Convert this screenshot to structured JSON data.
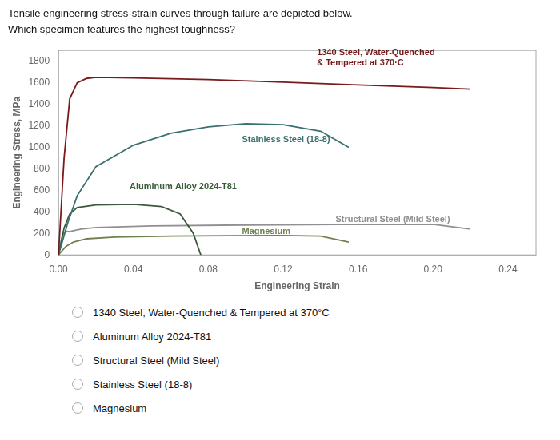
{
  "chart_data": {
    "type": "line",
    "title": "Tensile engineering stress-strain curves through failure are depicted below.",
    "subtitle": "Which specimen features the highest toughness?",
    "x_label": "Engineering Strain",
    "y_label": "Engineering Stress, MPa",
    "xlim": [
      0,
      0.255
    ],
    "ylim": [
      0,
      1900
    ],
    "xticks": [
      {
        "value": 0,
        "label": "0.00"
      },
      {
        "value": 0.04,
        "label": "0.04"
      },
      {
        "value": 0.08,
        "label": "0.08"
      },
      {
        "value": 0.12,
        "label": "0.12"
      },
      {
        "value": 0.16,
        "label": "0.16"
      },
      {
        "value": 0.2,
        "label": "0.20"
      },
      {
        "value": 0.24,
        "label": "0.24"
      }
    ],
    "yticks": [
      0,
      200,
      400,
      600,
      800,
      1000,
      1200,
      1400,
      1600,
      1800
    ],
    "grid": false,
    "series": [
      {
        "color": "#7a1a1a",
        "x": [
          0,
          0.003,
          0.006,
          0.01,
          0.015,
          0.02,
          0.04,
          0.08,
          0.12,
          0.16,
          0.2,
          0.22
        ],
        "values": [
          0,
          900,
          1450,
          1600,
          1640,
          1650,
          1645,
          1630,
          1605,
          1580,
          1555,
          1540
        ]
      },
      {
        "color": "#3a7070",
        "x": [
          0,
          0.005,
          0.01,
          0.02,
          0.04,
          0.06,
          0.08,
          0.1,
          0.12,
          0.14,
          0.155
        ],
        "values": [
          0,
          300,
          550,
          820,
          1020,
          1130,
          1190,
          1220,
          1210,
          1150,
          1000
        ]
      },
      {
        "color": "#3a5a3a",
        "x": [
          0,
          0.003,
          0.006,
          0.01,
          0.02,
          0.04,
          0.055,
          0.065,
          0.072,
          0.076
        ],
        "values": [
          0,
          250,
          380,
          440,
          465,
          470,
          450,
          380,
          200,
          0
        ]
      },
      {
        "color": "#909090",
        "x": [
          0,
          0.002,
          0.004,
          0.006,
          0.008,
          0.012,
          0.02,
          0.05,
          0.1,
          0.15,
          0.2,
          0.22
        ],
        "values": [
          0,
          180,
          220,
          215,
          225,
          240,
          255,
          270,
          278,
          282,
          285,
          240
        ]
      },
      {
        "color": "#708050",
        "x": [
          0,
          0.004,
          0.008,
          0.015,
          0.03,
          0.06,
          0.09,
          0.12,
          0.14,
          0.155
        ],
        "values": [
          0,
          80,
          120,
          150,
          165,
          175,
          178,
          180,
          175,
          120
        ]
      }
    ],
    "annotations": [
      {
        "text": "1340 Steel, Water-Quenched\n& Tempered at 370·C",
        "x": 0.138,
        "y": 1760,
        "color": "#7a1a1a"
      },
      {
        "text": "Stainless Steel (18-8)",
        "x": 0.098,
        "y": 1050,
        "color": "#3a7070"
      },
      {
        "text": "Aluminum Alloy 2024-T81",
        "x": 0.038,
        "y": 610,
        "color": "#3a5a3a"
      },
      {
        "text": "Structural Steel (Mild Steel)",
        "x": 0.148,
        "y": 305,
        "color": "#909090"
      },
      {
        "text": "Magnesium",
        "x": 0.098,
        "y": 192,
        "color": "#708050"
      }
    ],
    "choices": [
      "1340 Steel, Water-Quenched & Tempered at 370°C",
      "Aluminum Alloy 2024-T81",
      "Structural Steel (Mild Steel)",
      "Stainless Steel (18-8)",
      "Magnesium"
    ]
  }
}
